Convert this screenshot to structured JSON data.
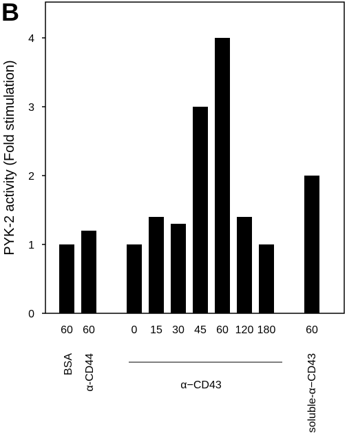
{
  "panel_label": "B",
  "chart_data": {
    "type": "bar",
    "ylabel": "PYK-2 activity (Fold stimulation)",
    "ylim": [
      0,
      4.5
    ],
    "yticks": [
      "0",
      "1",
      "2",
      "3",
      "4"
    ],
    "grid": false,
    "bars": [
      {
        "label": "60",
        "value": 1.0,
        "group": "BSA"
      },
      {
        "label": "60",
        "value": 1.2,
        "group": "α-CD44"
      },
      {
        "label": "0",
        "value": 1.0,
        "group": "α−CD43"
      },
      {
        "label": "15",
        "value": 1.4,
        "group": "α−CD43"
      },
      {
        "label": "30",
        "value": 1.3,
        "group": "α−CD43"
      },
      {
        "label": "45",
        "value": 3.0,
        "group": "α−CD43"
      },
      {
        "label": "60",
        "value": 4.0,
        "group": "α−CD43"
      },
      {
        "label": "120",
        "value": 1.4,
        "group": "α−CD43"
      },
      {
        "label": "180",
        "value": 1.0,
        "group": "α−CD43"
      },
      {
        "label": "60",
        "value": 2.0,
        "group": "soluble-α−CD43"
      }
    ],
    "groups": {
      "bsa": "BSA",
      "cd44": "α-CD44",
      "cd43": "α−CD43",
      "soluble": "soluble-α−CD43"
    }
  }
}
